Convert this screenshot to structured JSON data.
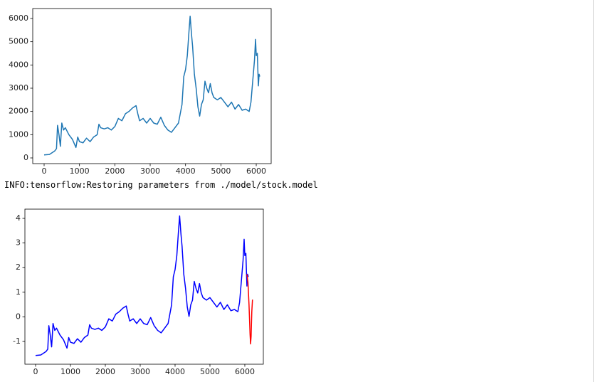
{
  "chart_data": [
    {
      "type": "line",
      "x": [
        0,
        150,
        300,
        350,
        380,
        420,
        460,
        500,
        550,
        600,
        700,
        800,
        900,
        950,
        1000,
        1100,
        1200,
        1300,
        1400,
        1500,
        1550,
        1600,
        1700,
        1800,
        1900,
        2000,
        2100,
        2200,
        2300,
        2400,
        2500,
        2600,
        2650,
        2700,
        2800,
        2900,
        3000,
        3100,
        3200,
        3300,
        3400,
        3500,
        3600,
        3700,
        3800,
        3900,
        3950,
        4000,
        4050,
        4100,
        4130,
        4170,
        4200,
        4250,
        4300,
        4350,
        4400,
        4450,
        4500,
        4550,
        4600,
        4650,
        4700,
        4750,
        4800,
        4900,
        5000,
        5100,
        5200,
        5300,
        5400,
        5500,
        5600,
        5700,
        5800,
        5850,
        5900,
        5950,
        5980,
        6000,
        6030,
        6060,
        6080,
        6100
      ],
      "series": [
        {
          "color": "#1f77b4",
          "values": [
            130,
            150,
            300,
            400,
            1400,
            1000,
            500,
            1500,
            1200,
            1300,
            1000,
            800,
            450,
            900,
            700,
            650,
            850,
            700,
            900,
            1000,
            1450,
            1300,
            1250,
            1300,
            1200,
            1350,
            1700,
            1600,
            1900,
            2000,
            2150,
            2250,
            1900,
            1600,
            1700,
            1500,
            1700,
            1500,
            1450,
            1750,
            1400,
            1200,
            1100,
            1300,
            1500,
            2300,
            3500,
            3800,
            4400,
            5500,
            6100,
            5300,
            4800,
            3600,
            3000,
            2200,
            1800,
            2300,
            2500,
            3300,
            3000,
            2800,
            3200,
            2800,
            2600,
            2500,
            2600,
            2400,
            2200,
            2400,
            2100,
            2300,
            2050,
            2100,
            2000,
            2400,
            3300,
            4200,
            5100,
            4400,
            4500,
            3100,
            3600,
            3500
          ]
        }
      ],
      "xlim": [
        -322,
        6422
      ],
      "ylim": [
        -245,
        6428
      ],
      "xticks": [
        0,
        1000,
        2000,
        3000,
        4000,
        5000,
        6000
      ],
      "yticks": [
        0,
        1000,
        2000,
        3000,
        4000,
        5000,
        6000
      ]
    },
    {
      "type": "line",
      "x": [
        0,
        150,
        300,
        350,
        380,
        420,
        460,
        500,
        550,
        600,
        700,
        800,
        900,
        950,
        1000,
        1100,
        1200,
        1300,
        1400,
        1500,
        1550,
        1600,
        1700,
        1800,
        1900,
        2000,
        2100,
        2200,
        2300,
        2400,
        2500,
        2600,
        2650,
        2700,
        2800,
        2900,
        3000,
        3100,
        3200,
        3300,
        3400,
        3500,
        3600,
        3700,
        3800,
        3900,
        3950,
        4000,
        4050,
        4100,
        4130,
        4170,
        4200,
        4250,
        4300,
        4350,
        4400,
        4450,
        4500,
        4550,
        4600,
        4650,
        4700,
        4750,
        4800,
        4900,
        5000,
        5100,
        5200,
        5300,
        5400,
        5500,
        5600,
        5700,
        5800,
        5850,
        5900,
        5950,
        5980,
        6000,
        6030,
        6060,
        6080,
        6100
      ],
      "series": [
        {
          "color": "#0000ff",
          "values": [
            -1.57,
            -1.55,
            -1.41,
            -1.31,
            -0.36,
            -0.74,
            -1.22,
            -0.27,
            -0.55,
            -0.46,
            -0.74,
            -0.93,
            -1.27,
            -0.84,
            -1.03,
            -1.08,
            -0.89,
            -1.03,
            -0.84,
            -0.74,
            -0.32,
            -0.46,
            -0.51,
            -0.46,
            -0.55,
            -0.41,
            -0.08,
            -0.17,
            0.11,
            0.21,
            0.35,
            0.44,
            0.11,
            -0.17,
            -0.08,
            -0.27,
            -0.08,
            -0.27,
            -0.32,
            -0.03,
            -0.36,
            -0.55,
            -0.65,
            -0.46,
            -0.27,
            0.49,
            1.63,
            1.92,
            2.49,
            3.53,
            4.1,
            3.34,
            2.87,
            1.73,
            1.16,
            0.4,
            0.02,
            0.49,
            0.68,
            1.44,
            1.16,
            0.97,
            1.35,
            0.97,
            0.78,
            0.68,
            0.78,
            0.59,
            0.4,
            0.59,
            0.3,
            0.49,
            0.25,
            0.3,
            0.21,
            0.59,
            1.44,
            2.3,
            3.15,
            2.49,
            2.58,
            1.25,
            1.73,
            1.63
          ]
        },
        {
          "color": "#ff0000",
          "x": [
            6060,
            6090,
            6120,
            6150,
            6165,
            6180,
            6200,
            6220
          ],
          "values": [
            1.73,
            1.4,
            0.5,
            -0.7,
            -1.1,
            -0.8,
            0.2,
            0.7
          ]
        }
      ],
      "xlim": [
        -306,
        6531
      ],
      "ylim": [
        -1.925,
        4.376
      ],
      "xticks": [
        0,
        1000,
        2000,
        3000,
        4000,
        5000,
        6000
      ],
      "yticks": [
        -1,
        0,
        1,
        2,
        3,
        4
      ]
    }
  ],
  "log_text": "INFO:tensorflow:Restoring parameters from ./model/stock.model"
}
